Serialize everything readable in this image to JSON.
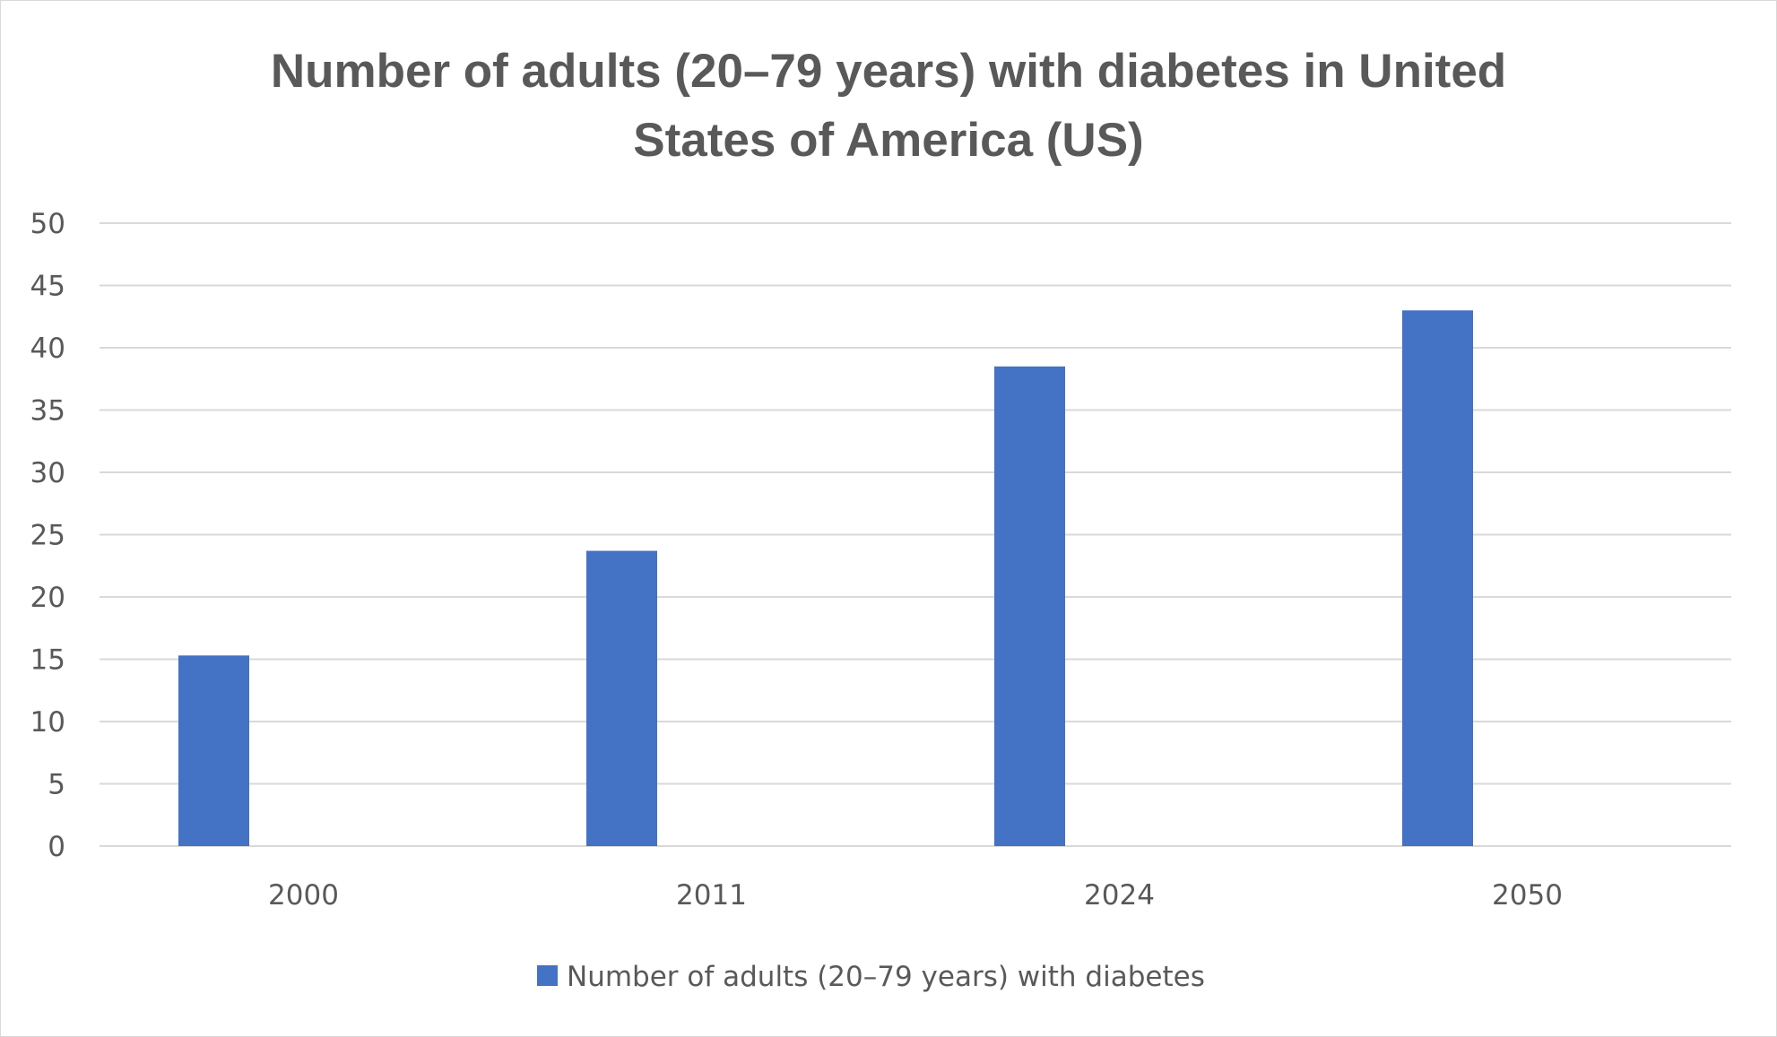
{
  "chart_data": {
    "type": "bar",
    "title": "Number of adults (20–79 years) with diabetes in United States of America (US)",
    "title_lines": [
      "Number of adults (20–79 years) with diabetes in United",
      "States of America (US)"
    ],
    "categories": [
      "2000",
      "2011",
      "2024",
      "2050"
    ],
    "series": [
      {
        "name": "Number of adults (20–79 years) with diabetes",
        "values": [
          15.3,
          23.7,
          38.5,
          43.0
        ],
        "color": "#4472c4"
      }
    ],
    "xlabel": "",
    "ylabel": "",
    "ylim": [
      0,
      50
    ],
    "yticks": [
      "0",
      "5",
      "10",
      "15",
      "20",
      "25",
      "30",
      "35",
      "40",
      "45",
      "50"
    ],
    "grid": true,
    "gridline_color": "#d9d9d9",
    "legend_position": "bottom"
  }
}
